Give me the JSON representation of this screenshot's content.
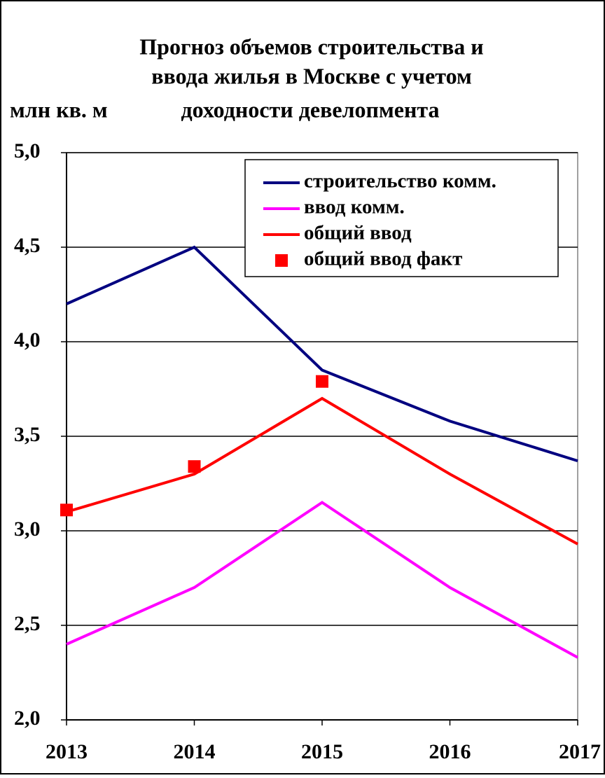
{
  "chart_data": {
    "type": "line",
    "title": [
      "Прогноз объемов строительства и",
      "ввода жилья в Москве с учетом",
      "доходности девелопмента"
    ],
    "y_label": "млн кв. м",
    "categories": [
      "2013",
      "2014",
      "2015",
      "2016",
      "2017"
    ],
    "ylim": [
      2,
      5
    ],
    "yticks": [
      {
        "value": 2,
        "label": "2,0"
      },
      {
        "value": 2.5,
        "label": "2,5"
      },
      {
        "value": 3,
        "label": "3,0"
      },
      {
        "value": 3.5,
        "label": "3,5"
      },
      {
        "value": 4,
        "label": "4,0"
      },
      {
        "value": 4.5,
        "label": "4,5"
      },
      {
        "value": 5,
        "label": "5,0"
      }
    ],
    "grid": true,
    "legend": "upper right",
    "series": [
      {
        "name": "строительство комм.",
        "color": "#000080",
        "style": "line",
        "values": [
          4.2,
          4.5,
          3.85,
          3.58,
          3.37
        ]
      },
      {
        "name": "ввод комм.",
        "color": "#ff00ff",
        "style": "line",
        "values": [
          2.4,
          2.7,
          3.15,
          2.7,
          2.33
        ]
      },
      {
        "name": "общий ввод",
        "color": "#ff0000",
        "style": "line",
        "values": [
          3.1,
          3.3,
          3.7,
          3.3,
          2.93
        ]
      },
      {
        "name": "общий ввод факт",
        "color": "#ff0000",
        "style": "markers",
        "values": [
          3.11,
          3.34,
          3.79,
          null,
          null
        ]
      }
    ]
  }
}
